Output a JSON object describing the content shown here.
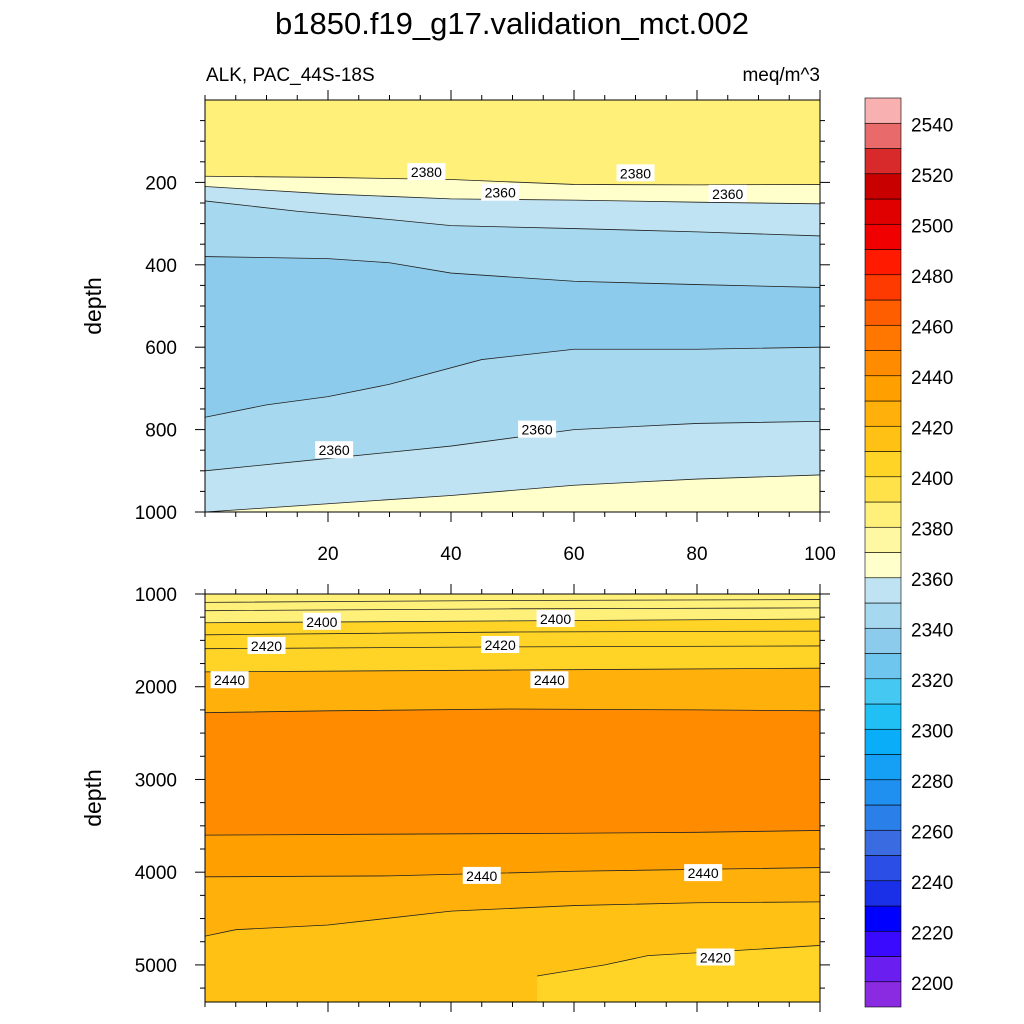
{
  "chart_data": {
    "type": "contour",
    "title": "b1850.f19_g17.validation_mct.002",
    "variable_label": "ALK, PAC_44S-18S",
    "units_label": "meq/m^3",
    "panels": [
      {
        "name": "upper",
        "ylabel": "depth",
        "xlim": [
          0,
          100
        ],
        "ylim": [
          1000,
          0
        ],
        "yticks": [
          "200",
          "400",
          "600",
          "800",
          "1000"
        ],
        "xticks": [
          "20",
          "40",
          "60",
          "80",
          "100"
        ],
        "bands": [
          {
            "upper_boundary": [
              [
                0,
                0
              ],
              [
                100,
                0
              ]
            ],
            "value": 2390
          },
          {
            "upper_boundary": [
              [
                0,
                185
              ],
              [
                20,
                188
              ],
              [
                40,
                193
              ],
              [
                60,
                205
              ],
              [
                80,
                206
              ],
              [
                100,
                205
              ]
            ],
            "value": 2375
          },
          {
            "upper_boundary": [
              [
                0,
                210
              ],
              [
                20,
                228
              ],
              [
                40,
                240
              ],
              [
                60,
                243
              ],
              [
                80,
                248
              ],
              [
                100,
                252
              ]
            ],
            "value": 2365
          },
          {
            "upper_boundary": [
              [
                0,
                245
              ],
              [
                15,
                270
              ],
              [
                30,
                290
              ],
              [
                40,
                305
              ],
              [
                60,
                312
              ],
              [
                80,
                320
              ],
              [
                100,
                330
              ]
            ],
            "value": 2355
          },
          {
            "upper_boundary": [
              [
                0,
                380
              ],
              [
                20,
                385
              ],
              [
                30,
                395
              ],
              [
                40,
                420
              ],
              [
                60,
                440
              ],
              [
                80,
                448
              ],
              [
                100,
                455
              ]
            ],
            "value": 2345
          },
          {
            "upper_boundary": [
              [
                0,
                770
              ],
              [
                10,
                740
              ],
              [
                20,
                720
              ],
              [
                30,
                690
              ],
              [
                45,
                630
              ],
              [
                60,
                605
              ],
              [
                80,
                605
              ],
              [
                100,
                600
              ]
            ],
            "value": 2355
          },
          {
            "upper_boundary": [
              [
                0,
                900
              ],
              [
                20,
                870
              ],
              [
                40,
                840
              ],
              [
                60,
                800
              ],
              [
                80,
                785
              ],
              [
                100,
                780
              ]
            ],
            "value": 2365
          },
          {
            "upper_boundary": [
              [
                0,
                1000
              ],
              [
                20,
                980
              ],
              [
                40,
                960
              ],
              [
                60,
                935
              ],
              [
                80,
                920
              ],
              [
                100,
                910
              ]
            ],
            "value": 2375
          }
        ],
        "lines": [
          [
            [
              0,
              185
            ],
            [
              20,
              188
            ],
            [
              40,
              193
            ],
            [
              60,
              205
            ],
            [
              80,
              206
            ],
            [
              100,
              205
            ]
          ],
          [
            [
              0,
              210
            ],
            [
              20,
              228
            ],
            [
              40,
              240
            ],
            [
              60,
              243
            ],
            [
              80,
              248
            ],
            [
              100,
              252
            ]
          ],
          [
            [
              0,
              245
            ],
            [
              15,
              270
            ],
            [
              30,
              290
            ],
            [
              40,
              305
            ],
            [
              60,
              312
            ],
            [
              80,
              320
            ],
            [
              100,
              330
            ]
          ],
          [
            [
              0,
              380
            ],
            [
              20,
              385
            ],
            [
              30,
              395
            ],
            [
              40,
              420
            ],
            [
              60,
              440
            ],
            [
              80,
              448
            ],
            [
              100,
              455
            ]
          ],
          [
            [
              0,
              770
            ],
            [
              10,
              740
            ],
            [
              20,
              720
            ],
            [
              30,
              690
            ],
            [
              45,
              630
            ],
            [
              60,
              605
            ],
            [
              80,
              605
            ],
            [
              100,
              600
            ]
          ],
          [
            [
              0,
              900
            ],
            [
              20,
              870
            ],
            [
              40,
              840
            ],
            [
              60,
              800
            ],
            [
              80,
              785
            ],
            [
              100,
              780
            ]
          ],
          [
            [
              0,
              1000
            ],
            [
              20,
              980
            ],
            [
              40,
              960
            ],
            [
              60,
              935
            ],
            [
              80,
              920
            ],
            [
              100,
              910
            ]
          ]
        ],
        "labels": [
          {
            "text": "2380",
            "x": 36,
            "y": 175
          },
          {
            "text": "2380",
            "x": 70,
            "y": 178
          },
          {
            "text": "2360",
            "x": 48,
            "y": 225
          },
          {
            "text": "2360",
            "x": 85,
            "y": 228
          },
          {
            "text": "2360",
            "x": 21,
            "y": 850
          },
          {
            "text": "2360",
            "x": 54,
            "y": 800
          }
        ]
      },
      {
        "name": "lower",
        "ylabel": "depth",
        "xlim": [
          0,
          100
        ],
        "ylim": [
          5400,
          1000
        ],
        "yticks": [
          "1000",
          "2000",
          "3000",
          "4000",
          "5000"
        ],
        "xticks": [],
        "bands": [
          {
            "upper_boundary": [
              [
                0,
                1000
              ],
              [
                100,
                1000
              ]
            ],
            "value": 2395
          },
          {
            "upper_boundary": [
              [
                0,
                1310
              ],
              [
                50,
                1290
              ],
              [
                100,
                1270
              ]
            ],
            "value": 2410
          },
          {
            "upper_boundary": [
              [
                0,
                1840
              ],
              [
                50,
                1820
              ],
              [
                100,
                1800
              ]
            ],
            "value": 2435
          },
          {
            "upper_boundary": [
              [
                0,
                2280
              ],
              [
                20,
                2260
              ],
              [
                50,
                2240
              ],
              [
                80,
                2250
              ],
              [
                100,
                2260
              ]
            ],
            "value": 2455
          },
          {
            "upper_boundary": [
              [
                0,
                3600
              ],
              [
                30,
                3590
              ],
              [
                60,
                3580
              ],
              [
                80,
                3570
              ],
              [
                100,
                3550
              ]
            ],
            "value": 2445
          },
          {
            "upper_boundary": [
              [
                0,
                4050
              ],
              [
                30,
                4040
              ],
              [
                60,
                3990
              ],
              [
                100,
                3950
              ]
            ],
            "value": 2435
          },
          {
            "upper_boundary": [
              [
                0,
                4690
              ],
              [
                5,
                4620
              ],
              [
                20,
                4570
              ],
              [
                40,
                4420
              ],
              [
                60,
                4360
              ],
              [
                80,
                4330
              ],
              [
                100,
                4320
              ]
            ],
            "value": 2425
          },
          {
            "upper_boundary": [
              [
                54,
                5120
              ],
              [
                65,
                5000
              ],
              [
                72,
                4900
              ],
              [
                85,
                4850
              ],
              [
                100,
                4790
              ],
              [
                100,
                5400
              ],
              [
                54,
                5400
              ]
            ],
            "value": 2415,
            "closed": true
          }
        ],
        "lines": [
          [
            [
              0,
              1090
            ],
            [
              50,
              1070
            ],
            [
              100,
              1060
            ]
          ],
          [
            [
              0,
              1180
            ],
            [
              50,
              1160
            ],
            [
              100,
              1150
            ]
          ],
          [
            [
              0,
              1310
            ],
            [
              50,
              1290
            ],
            [
              100,
              1270
            ]
          ],
          [
            [
              0,
              1440
            ],
            [
              50,
              1410
            ],
            [
              100,
              1400
            ]
          ],
          [
            [
              0,
              1590
            ],
            [
              50,
              1570
            ],
            [
              100,
              1560
            ]
          ],
          [
            [
              0,
              1840
            ],
            [
              50,
              1820
            ],
            [
              100,
              1800
            ]
          ],
          [
            [
              0,
              2280
            ],
            [
              20,
              2260
            ],
            [
              50,
              2240
            ],
            [
              80,
              2250
            ],
            [
              100,
              2260
            ]
          ],
          [
            [
              0,
              3600
            ],
            [
              30,
              3590
            ],
            [
              60,
              3580
            ],
            [
              80,
              3570
            ],
            [
              100,
              3550
            ]
          ],
          [
            [
              0,
              4050
            ],
            [
              30,
              4040
            ],
            [
              60,
              3990
            ],
            [
              100,
              3950
            ]
          ],
          [
            [
              0,
              4690
            ],
            [
              5,
              4620
            ],
            [
              20,
              4570
            ],
            [
              40,
              4420
            ],
            [
              60,
              4360
            ],
            [
              80,
              4330
            ],
            [
              100,
              4320
            ]
          ],
          [
            [
              54,
              5120
            ],
            [
              65,
              5000
            ],
            [
              72,
              4900
            ],
            [
              85,
              4850
            ],
            [
              100,
              4790
            ]
          ]
        ],
        "labels": [
          {
            "text": "2400",
            "x": 19,
            "y": 1300
          },
          {
            "text": "2400",
            "x": 57,
            "y": 1270
          },
          {
            "text": "2420",
            "x": 10,
            "y": 1560
          },
          {
            "text": "2420",
            "x": 48,
            "y": 1550
          },
          {
            "text": "2440",
            "x": 4,
            "y": 1930
          },
          {
            "text": "2440",
            "x": 56,
            "y": 1930
          },
          {
            "text": "2440",
            "x": 45,
            "y": 4040
          },
          {
            "text": "2440",
            "x": 81,
            "y": 4010
          },
          {
            "text": "2420",
            "x": 83,
            "y": 4920
          }
        ]
      }
    ],
    "colorbar": {
      "levels": [
        2200,
        2210,
        2220,
        2230,
        2240,
        2250,
        2260,
        2270,
        2280,
        2290,
        2300,
        2310,
        2320,
        2330,
        2340,
        2350,
        2360,
        2370,
        2380,
        2390,
        2400,
        2410,
        2420,
        2430,
        2440,
        2450,
        2460,
        2470,
        2480,
        2490,
        2500,
        2510,
        2520,
        2530,
        2540,
        2550,
        2560
      ],
      "colors": [
        "#8a2be2",
        "#6a1ef0",
        "#3a0aff",
        "#0000ff",
        "#1a30e8",
        "#2b4fe6",
        "#3a6be0",
        "#2a7fe8",
        "#1f8ff0",
        "#159ff5",
        "#0aaef8",
        "#20c0f5",
        "#45c8f2",
        "#6ec6ee",
        "#8ccbeb",
        "#a6d8ef",
        "#bfe3f2",
        "#ffffcc",
        "#fff8a3",
        "#fff07a",
        "#ffe24a",
        "#ffd426",
        "#ffc214",
        "#ffb00a",
        "#ffa000",
        "#ff8c00",
        "#ff7600",
        "#ff5e00",
        "#ff3a00",
        "#ff1a00",
        "#f00000",
        "#e00000",
        "#c80000",
        "#d82a2a",
        "#e86a6a",
        "#f8b0b0"
      ],
      "tick_labels": [
        "2200",
        "2220",
        "2240",
        "2260",
        "2280",
        "2300",
        "2320",
        "2340",
        "2360",
        "2380",
        "2400",
        "2420",
        "2440",
        "2460",
        "2480",
        "2500",
        "2520",
        "2540"
      ]
    }
  }
}
